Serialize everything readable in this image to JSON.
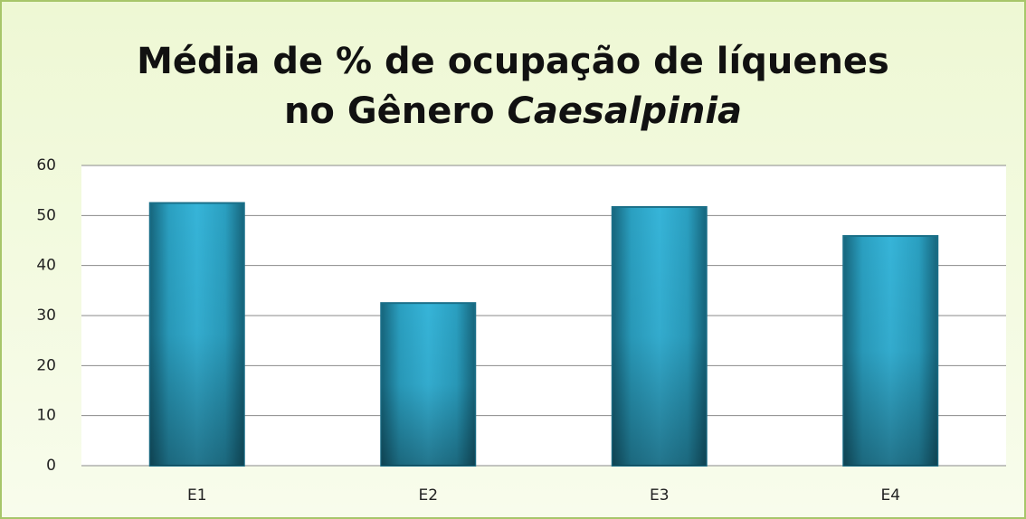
{
  "chart_data": {
    "type": "bar",
    "title": [
      "Média de % de ocupação de líquenes",
      "no Gênero",
      "Caesalpinia"
    ],
    "categories": [
      "E1",
      "E2",
      "E3",
      "E4"
    ],
    "values": [
      52.5,
      32.5,
      51.7,
      45.9
    ],
    "color": "#2aa8cc",
    "ylim": [
      0,
      60
    ],
    "yticks": [
      0,
      10,
      20,
      30,
      40,
      50,
      60
    ],
    "grid": true
  }
}
